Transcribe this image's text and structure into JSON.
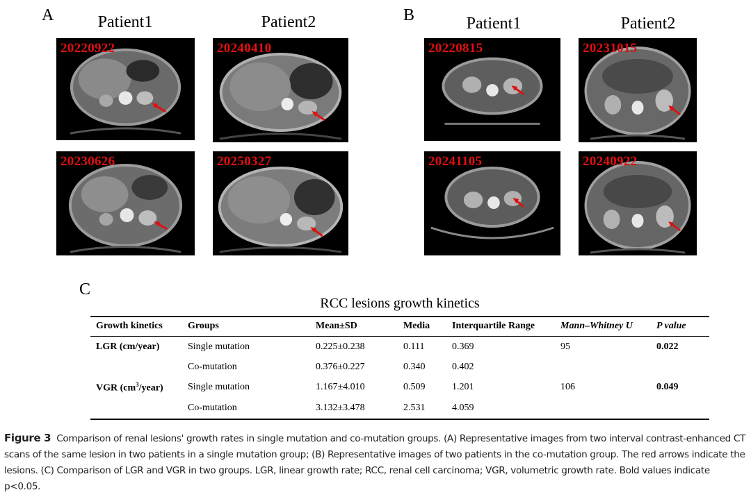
{
  "panels": {
    "A": {
      "letter": "A",
      "patients": [
        "Patient1",
        "Patient2"
      ],
      "scans": [
        {
          "date": "20220922"
        },
        {
          "date": "20240410"
        },
        {
          "date": "20230626"
        },
        {
          "date": "20250327"
        }
      ]
    },
    "B": {
      "letter": "B",
      "patients": [
        "Patient1",
        "Patient2"
      ],
      "scans": [
        {
          "date": "20220815"
        },
        {
          "date": "20231015"
        },
        {
          "date": "20241105"
        },
        {
          "date": "20240922"
        }
      ]
    },
    "C": {
      "letter": "C",
      "title": "RCC lesions growth kinetics",
      "headers": [
        "Growth kinetics",
        "Groups",
        "Mean±SD",
        "Media",
        "Interquartile Range",
        "Mann–Whitney U",
        "P value"
      ],
      "rows": [
        {
          "kinetic": "LGR (cm/year)",
          "group": "Single mutation",
          "mean": "0.225±0.238",
          "median": "0.111",
          "iqr": "0.369",
          "u": "95",
          "p": "0.022"
        },
        {
          "kinetic": "",
          "group": "Co-mutation",
          "mean": "0.376±0.227",
          "median": "0.340",
          "iqr": "0.402",
          "u": "",
          "p": ""
        },
        {
          "kinetic_pre": "VGR (cm",
          "kinetic_sup": "3",
          "kinetic_post": "/year)",
          "group": "Single mutation",
          "mean": "1.167±4.010",
          "median": "0.509",
          "iqr": "1.201",
          "u": "106",
          "p": "0.049"
        },
        {
          "kinetic": "",
          "group": "Co-mutation",
          "mean": "3.132±3.478",
          "median": "2.531",
          "iqr": "4.059",
          "u": "",
          "p": ""
        }
      ]
    }
  },
  "caption": {
    "label": "Figure 3",
    "text": "Comparison of renal lesions' growth rates in single mutation and co-mutation groups. (A) Representative images from two interval contrast-enhanced CT scans of the same lesion in two patients in a single mutation group; (B) Representative images of two patients in the co-mutation group. The red arrows indicate the lesions. (C) Comparison of LGR and VGR in two groups. LGR, linear growth rate; RCC, renal cell carcinoma; VGR, volumetric growth rate. Bold values indicate p<0.05."
  },
  "colors": {
    "date_label": "#e01010",
    "arrow": "#e01010",
    "background": "#ffffff"
  }
}
